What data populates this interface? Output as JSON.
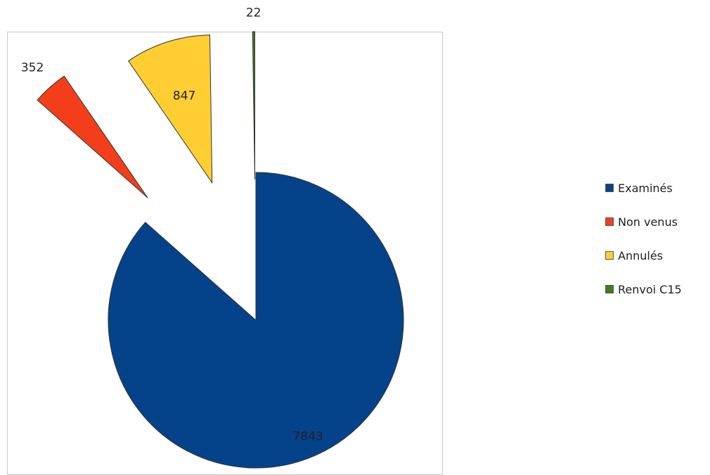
{
  "chart_data": {
    "type": "pie",
    "exploded": true,
    "legend_position": "right",
    "slices": [
      {
        "name": "Examinés",
        "value": 7843,
        "label": "7843",
        "color": "#044389"
      },
      {
        "name": "Non venus",
        "value": 352,
        "label": "352",
        "color": "#f33e1c"
      },
      {
        "name": "Annulés",
        "value": 847,
        "label": "847",
        "color": "#ffce32"
      },
      {
        "name": "Renvoi C15",
        "value": 22,
        "label": "22",
        "color": "#3c7d22"
      }
    ]
  }
}
